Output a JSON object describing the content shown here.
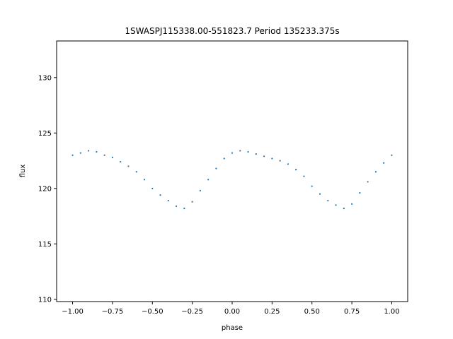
{
  "chart_data": {
    "type": "scatter",
    "title": "1SWASPJ115338.00-551823.7 Period 135233.375s",
    "xlabel": "phase",
    "ylabel": "flux",
    "xlim": [
      -1.1,
      1.1
    ],
    "ylim": [
      109.8,
      133.3
    ],
    "xticks": [
      -1.0,
      -0.75,
      -0.5,
      -0.25,
      0.0,
      0.25,
      0.5,
      0.75,
      1.0
    ],
    "xtick_labels": [
      "−1.00",
      "−0.75",
      "−0.50",
      "−0.25",
      "0.00",
      "0.25",
      "0.50",
      "0.75",
      "1.00"
    ],
    "yticks": [
      110,
      115,
      120,
      125,
      130
    ],
    "ytick_labels": [
      "110",
      "115",
      "120",
      "125",
      "130"
    ],
    "grid": false,
    "marker_color": "#1f77b4",
    "series": [
      {
        "x": [
          -1.0,
          -0.95,
          -0.9,
          -0.85,
          -0.8,
          -0.75,
          -0.7,
          -0.65,
          -0.6,
          -0.55,
          -0.5,
          -0.45,
          -0.4,
          -0.35,
          -0.3,
          -0.25,
          -0.2,
          -0.15,
          -0.1,
          -0.05,
          0.0,
          0.05,
          0.1,
          0.15,
          0.2,
          0.25,
          0.3,
          0.35,
          0.4,
          0.45,
          0.5,
          0.55,
          0.6,
          0.65,
          0.7,
          0.75,
          0.8,
          0.85,
          0.9,
          0.95,
          1.0
        ],
        "y": [
          123.0,
          123.2,
          123.4,
          123.3,
          123.0,
          122.8,
          122.4,
          122.0,
          121.5,
          120.8,
          120.0,
          119.4,
          118.9,
          118.4,
          118.2,
          118.8,
          119.8,
          120.8,
          121.8,
          122.7,
          123.2,
          123.4,
          123.3,
          123.1,
          122.9,
          122.7,
          122.5,
          122.2,
          121.7,
          121.1,
          120.2,
          119.5,
          118.9,
          118.5,
          118.2,
          118.6,
          119.6,
          120.6,
          121.5,
          122.3,
          123.0
        ]
      }
    ]
  }
}
